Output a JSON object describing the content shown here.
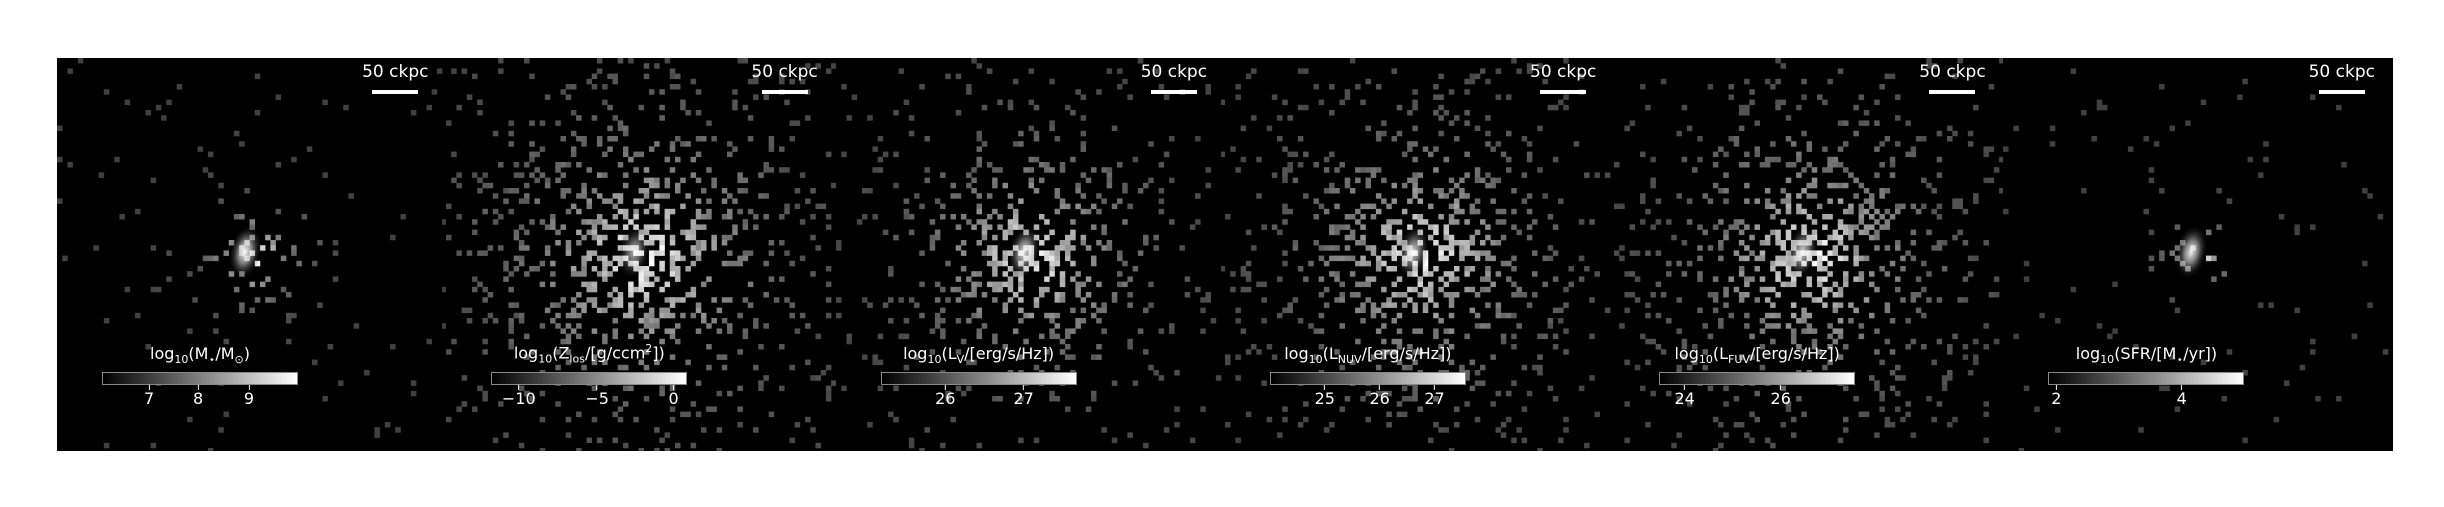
{
  "scalebar_label": "50 ckpc",
  "colormap": {
    "low": "#000000",
    "high": "#ffffff"
  },
  "panels": [
    {
      "id": "stellar-mass",
      "cbar_label": [
        "log",
        "10",
        "(M",
        "⋆",
        "/M",
        "⊙",
        ")"
      ],
      "ticks": [
        {
          "label": "7",
          "pos": 0.24
        },
        {
          "label": "8",
          "pos": 0.49
        },
        {
          "label": "9",
          "pos": 0.75
        }
      ],
      "spread": 0.55,
      "density": 0.28,
      "core": 1.0
    },
    {
      "id": "metallicity",
      "cbar_label": [
        "log",
        "10",
        "(Z",
        "los",
        "/[g/ccm",
        "2",
        "])"
      ],
      "ticks": [
        {
          "label": "−10",
          "pos": 0.14
        },
        {
          "label": "−5",
          "pos": 0.54
        },
        {
          "label": "0",
          "pos": 0.93
        }
      ],
      "spread": 1.6,
      "density": 0.55,
      "core": 0.7
    },
    {
      "id": "v-band-luminosity",
      "cbar_label": [
        "log",
        "10",
        "(L",
        "V",
        "/[erg/s/Hz])",
        "",
        ""
      ],
      "ticks": [
        {
          "label": "26",
          "pos": 0.33
        },
        {
          "label": "27",
          "pos": 0.73
        }
      ],
      "spread": 1.3,
      "density": 0.5,
      "core": 0.9
    },
    {
      "id": "nuv-luminosity",
      "cbar_label": [
        "log",
        "10",
        "(L",
        "NUV",
        "/[erg/s/Hz])",
        "",
        ""
      ],
      "ticks": [
        {
          "label": "25",
          "pos": 0.28
        },
        {
          "label": "26",
          "pos": 0.56
        },
        {
          "label": "27",
          "pos": 0.84
        }
      ],
      "spread": 1.4,
      "density": 0.55,
      "core": 0.85
    },
    {
      "id": "fuv-luminosity",
      "cbar_label": [
        "log",
        "10",
        "(L",
        "FUV",
        "/[erg/s/Hz])",
        "",
        ""
      ],
      "ticks": [
        {
          "label": "24",
          "pos": 0.13
        },
        {
          "label": "26",
          "pos": 0.62
        }
      ],
      "spread": 1.45,
      "density": 0.55,
      "core": 0.85
    },
    {
      "id": "star-formation-rate",
      "cbar_label": [
        "log",
        "10",
        "(SFR/[M",
        "⋆",
        "/yr])",
        "",
        ""
      ],
      "ticks": [
        {
          "label": "2",
          "pos": 0.04
        },
        {
          "label": "4",
          "pos": 0.68
        }
      ],
      "spread": 0.4,
      "density": 0.25,
      "core": 0.95
    }
  ]
}
